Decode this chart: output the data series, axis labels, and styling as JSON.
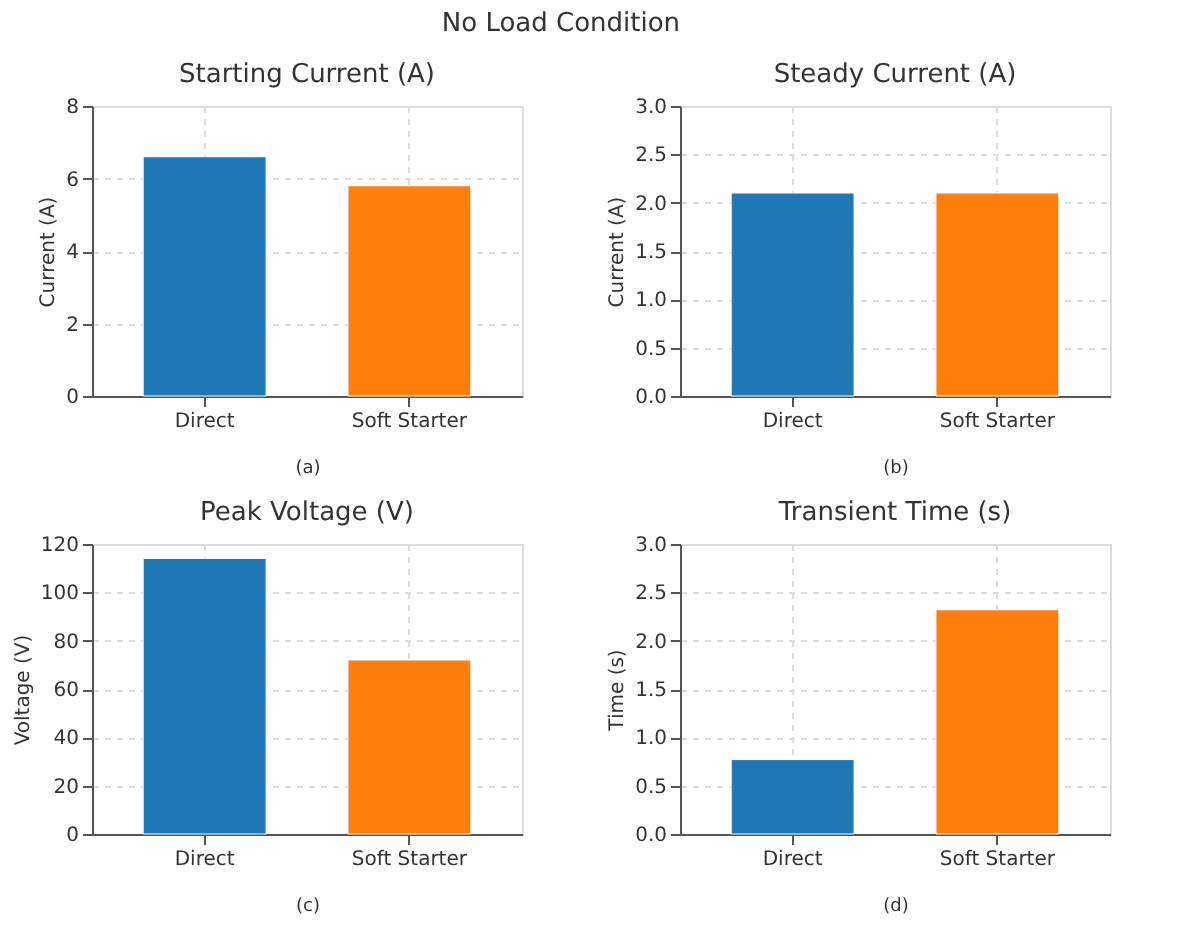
{
  "chart_data": [
    {
      "type": "bar",
      "title": "Starting Current (A)",
      "xlabel": "(a)",
      "ylabel": "Current (A)",
      "annotations": [
        "No Load Condition"
      ],
      "categories": [
        "Direct",
        "Soft Starter"
      ],
      "values": [
        6.6,
        5.8
      ],
      "colors": [
        "#1f77b4",
        "#ff7f0e"
      ],
      "ylim": [
        0,
        8
      ],
      "yticks": [
        0,
        2,
        4,
        6,
        8
      ],
      "grid": true
    },
    {
      "type": "bar",
      "title": "Steady Current (A)",
      "xlabel": "(b)",
      "ylabel": "Current (A)",
      "categories": [
        "Direct",
        "Soft Starter"
      ],
      "values": [
        2.1,
        2.1
      ],
      "colors": [
        "#1f77b4",
        "#ff7f0e"
      ],
      "ylim": [
        0,
        3
      ],
      "yticks": [
        {
          "value": 0,
          "label": "0.0"
        },
        0.5,
        {
          "value": 1,
          "label": "1.0"
        },
        1.5,
        {
          "value": 2,
          "label": "2.0"
        },
        2.5,
        {
          "value": 3,
          "label": "3.0"
        }
      ],
      "grid": true
    },
    {
      "type": "bar",
      "title": "Peak Voltage (V)",
      "xlabel": "(c)",
      "ylabel": "Voltage (V)",
      "categories": [
        "Direct",
        "Soft Starter"
      ],
      "values": [
        114,
        72
      ],
      "colors": [
        "#1f77b4",
        "#ff7f0e"
      ],
      "ylim": [
        0,
        120
      ],
      "yticks": [
        0,
        20,
        40,
        60,
        80,
        100,
        120
      ],
      "grid": true
    },
    {
      "type": "bar",
      "title": "Transient Time (s)",
      "xlabel": "(d)",
      "ylabel": "Time (s)",
      "categories": [
        "Direct",
        "Soft Starter"
      ],
      "values": [
        0.77,
        2.32
      ],
      "colors": [
        "#1f77b4",
        "#ff7f0e"
      ],
      "ylim": [
        0,
        3
      ],
      "yticks": [
        {
          "value": 0,
          "label": "0.0"
        },
        0.5,
        {
          "value": 1,
          "label": "1.0"
        },
        1.5,
        {
          "value": 2,
          "label": "2.0"
        },
        2.5,
        {
          "value": 3,
          "label": "3.0"
        }
      ],
      "grid": true
    }
  ]
}
